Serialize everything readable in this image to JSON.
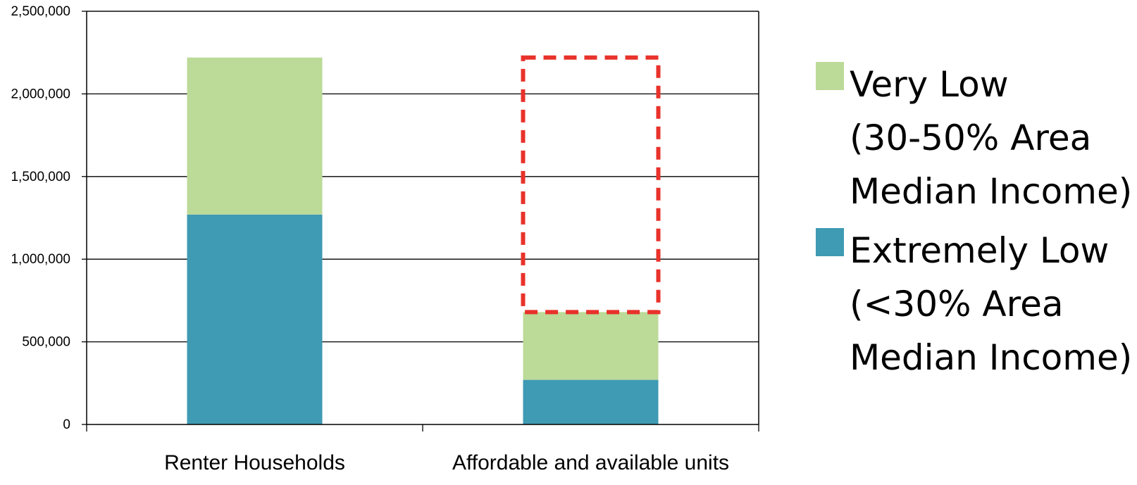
{
  "chart_data": {
    "type": "bar",
    "stacked": true,
    "categories": [
      "Renter Households",
      "Affordable and available units"
    ],
    "series": [
      {
        "name": "Extremely Low (<30% Area Median Income)",
        "values": [
          1270000,
          270000
        ],
        "color": "#3f9ab4"
      },
      {
        "name": "Very Low (30-50% Area Median Income)",
        "values": [
          950000,
          410000
        ],
        "color": "#bcda98"
      }
    ],
    "ylim": [
      0,
      2500000
    ],
    "yticks": [
      0,
      500000,
      1000000,
      1500000,
      2000000,
      2500000
    ],
    "ytick_labels": [
      "0",
      "500,000",
      "1,000,000",
      "1,500,000",
      "2,000,000",
      "2,500,000"
    ],
    "grid": true,
    "legend_position": "right",
    "annotation": {
      "type": "dashed-box",
      "category_index": 1,
      "from": 680000,
      "to": 2220000,
      "color": "#e8322a"
    },
    "title": "",
    "xlabel": "",
    "ylabel": ""
  },
  "legend": {
    "very_low": {
      "line1": "Very Low",
      "line2": "(30-50% Area",
      "line3": "Median Income)",
      "color": "#bcda98"
    },
    "extremely_low": {
      "line1": "Extremely Low",
      "line2": "(<30% Area",
      "line3": "Median Income)",
      "color": "#3f9ab4"
    }
  }
}
